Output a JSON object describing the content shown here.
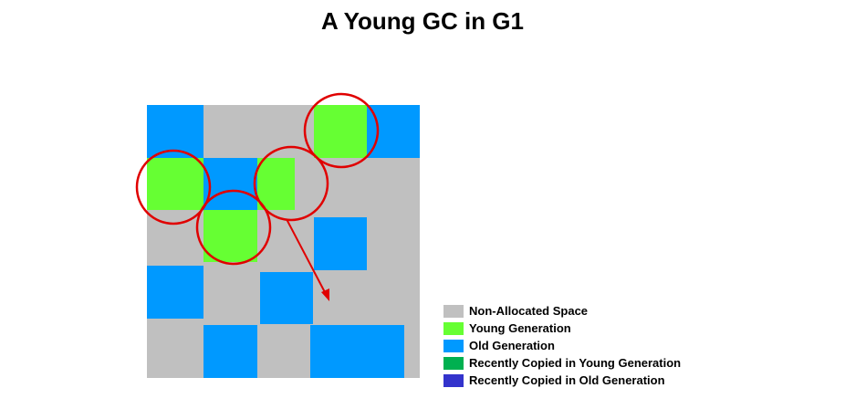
{
  "title": "A Young GC in G1",
  "colors": {
    "non_allocated": "#c0c0c0",
    "young": "#66ff33",
    "old": "#0099ff",
    "recent_young": "#00b050",
    "recent_old": "#3333cc",
    "highlight": "#e00000"
  },
  "legend": {
    "items": [
      {
        "label": "Non-Allocated Space",
        "color": "#c0c0c0"
      },
      {
        "label": "Young Generation",
        "color": "#66ff33"
      },
      {
        "label": "Old Generation",
        "color": "#0099ff"
      },
      {
        "label": "Recently Copied in Young Generation",
        "color": "#00b050"
      },
      {
        "label": "Recently Copied in Old Generation",
        "color": "#3333cc"
      }
    ]
  }
}
